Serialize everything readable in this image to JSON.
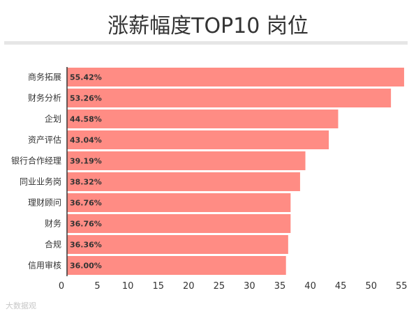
{
  "header": {
    "title": "涨薪幅度TOP10 岗位"
  },
  "watermark": {
    "text": "大数据观"
  },
  "chart_data": {
    "type": "bar",
    "orientation": "horizontal",
    "categories": [
      "商务拓展",
      "财务分析",
      "企划",
      "资产评估",
      "银行合作经理",
      "同业业务岗",
      "理财顾问",
      "财务",
      "合规",
      "信用审核"
    ],
    "values": [
      55.42,
      53.26,
      44.58,
      43.04,
      39.19,
      38.32,
      36.76,
      36.76,
      36.36,
      36.0
    ],
    "value_labels": [
      "55.42%",
      "53.26%",
      "44.58%",
      "43.04%",
      "39.19%",
      "38.32%",
      "36.76%",
      "36.76%",
      "36.36%",
      "36.00%"
    ],
    "xticks": [
      "0",
      "5",
      "10",
      "15",
      "20",
      "25",
      "30",
      "35",
      "40",
      "45",
      "50",
      "55"
    ],
    "xlim": [
      0,
      56
    ],
    "title": "涨薪幅度TOP10 岗位",
    "xlabel": "",
    "ylabel": "",
    "bar_color": "#ff8c84",
    "grid": false,
    "legend": "none"
  }
}
